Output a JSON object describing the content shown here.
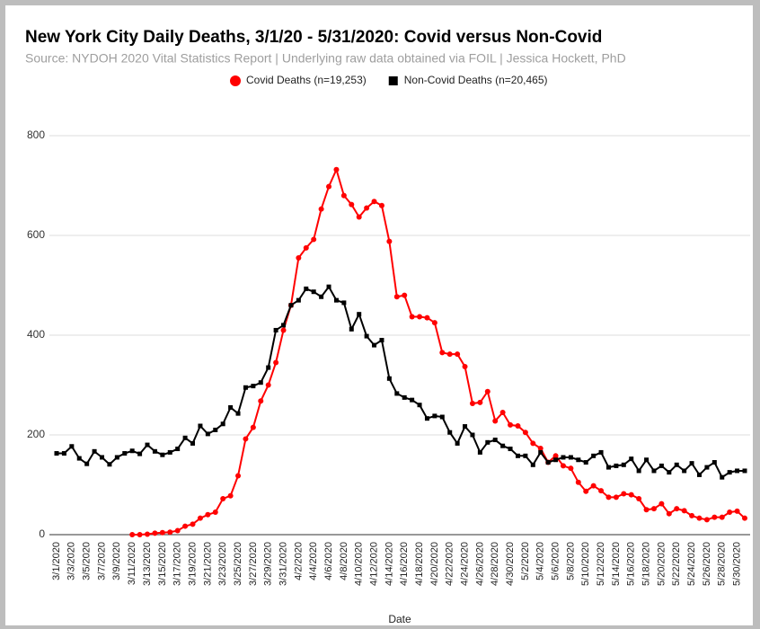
{
  "chart_data": {
    "type": "line",
    "title": "New York City Daily Deaths, 3/1/20 - 5/31/2020: Covid versus Non-Covid",
    "subtitle": "Source: NYDOH 2020 Vital Statistics Report | Underlying raw data obtained via FOIL | Jessica Hockett, PhD",
    "x_label": "Date",
    "categories": [
      "3/1/2020",
      null,
      "3/3/2020",
      null,
      "3/5/2020",
      null,
      "3/7/2020",
      null,
      "3/9/2020",
      null,
      "3/11/2020",
      null,
      "3/13/2020",
      null,
      "3/15/2020",
      null,
      "3/17/2020",
      null,
      "3/19/2020",
      null,
      "3/21/2020",
      null,
      "3/23/2020",
      null,
      "3/25/2020",
      null,
      "3/27/2020",
      null,
      "3/29/2020",
      null,
      "3/31/2020",
      null,
      "4/2/2020",
      null,
      "4/4/2020",
      null,
      "4/6/2020",
      null,
      "4/8/2020",
      null,
      "4/10/2020",
      null,
      "4/12/2020",
      null,
      "4/14/2020",
      null,
      "4/16/2020",
      null,
      "4/18/2020",
      null,
      "4/20/2020",
      null,
      "4/22/2020",
      null,
      "4/24/2020",
      null,
      "4/26/2020",
      null,
      "4/28/2020",
      null,
      "4/30/2020",
      null,
      "5/2/2020",
      null,
      "5/4/2020",
      null,
      "5/6/2020",
      null,
      "5/8/2020",
      null,
      "5/10/2020",
      null,
      "5/12/2020",
      null,
      "5/14/2020",
      null,
      "5/16/2020",
      null,
      "5/18/2020",
      null,
      "5/20/2020",
      null,
      "5/22/2020",
      null,
      "5/24/2020",
      null,
      "5/26/2020",
      null,
      "5/28/2020",
      null,
      "5/30/2020",
      null
    ],
    "series": [
      {
        "name": "Covid Deaths (n=19,253)",
        "color": "#ff0000",
        "marker": "circle",
        "values": [
          null,
          null,
          null,
          null,
          null,
          null,
          null,
          null,
          null,
          null,
          0,
          0,
          1,
          3,
          4,
          5,
          8,
          17,
          21,
          33,
          40,
          45,
          72,
          78,
          118,
          192,
          215,
          268,
          300,
          345,
          410,
          460,
          555,
          575,
          592,
          653,
          698,
          732,
          680,
          662,
          637,
          655,
          668,
          660,
          588,
          477,
          480,
          437,
          437,
          435,
          425,
          365,
          362,
          362,
          337,
          263,
          265,
          287,
          228,
          245,
          220,
          218,
          205,
          183,
          173,
          145,
          158,
          138,
          133,
          105,
          87,
          98,
          88,
          75,
          75,
          82,
          80,
          72,
          50,
          52,
          62,
          42,
          52,
          48,
          38,
          33,
          30,
          35,
          35,
          45,
          47,
          33
        ]
      },
      {
        "name": "Non-Covid Deaths (n=20,465)",
        "color": "#000000",
        "marker": "square",
        "values": [
          163,
          163,
          177,
          153,
          142,
          167,
          155,
          141,
          155,
          163,
          168,
          162,
          180,
          167,
          160,
          165,
          172,
          194,
          183,
          218,
          202,
          210,
          222,
          255,
          243,
          295,
          298,
          305,
          335,
          410,
          420,
          460,
          470,
          493,
          487,
          477,
          497,
          470,
          465,
          412,
          442,
          398,
          380,
          390,
          313,
          283,
          275,
          270,
          260,
          233,
          238,
          236,
          205,
          183,
          217,
          200,
          165,
          185,
          190,
          178,
          172,
          158,
          158,
          140,
          165,
          145,
          150,
          155,
          155,
          150,
          145,
          158,
          165,
          135,
          138,
          140,
          152,
          128,
          150,
          128,
          138,
          125,
          140,
          128,
          143,
          120,
          135,
          145,
          115,
          125,
          128,
          128
        ]
      }
    ],
    "ylim": [
      0,
      800
    ],
    "yticks": [
      0,
      200,
      400,
      600,
      800
    ],
    "grid": true,
    "legend": "top"
  }
}
